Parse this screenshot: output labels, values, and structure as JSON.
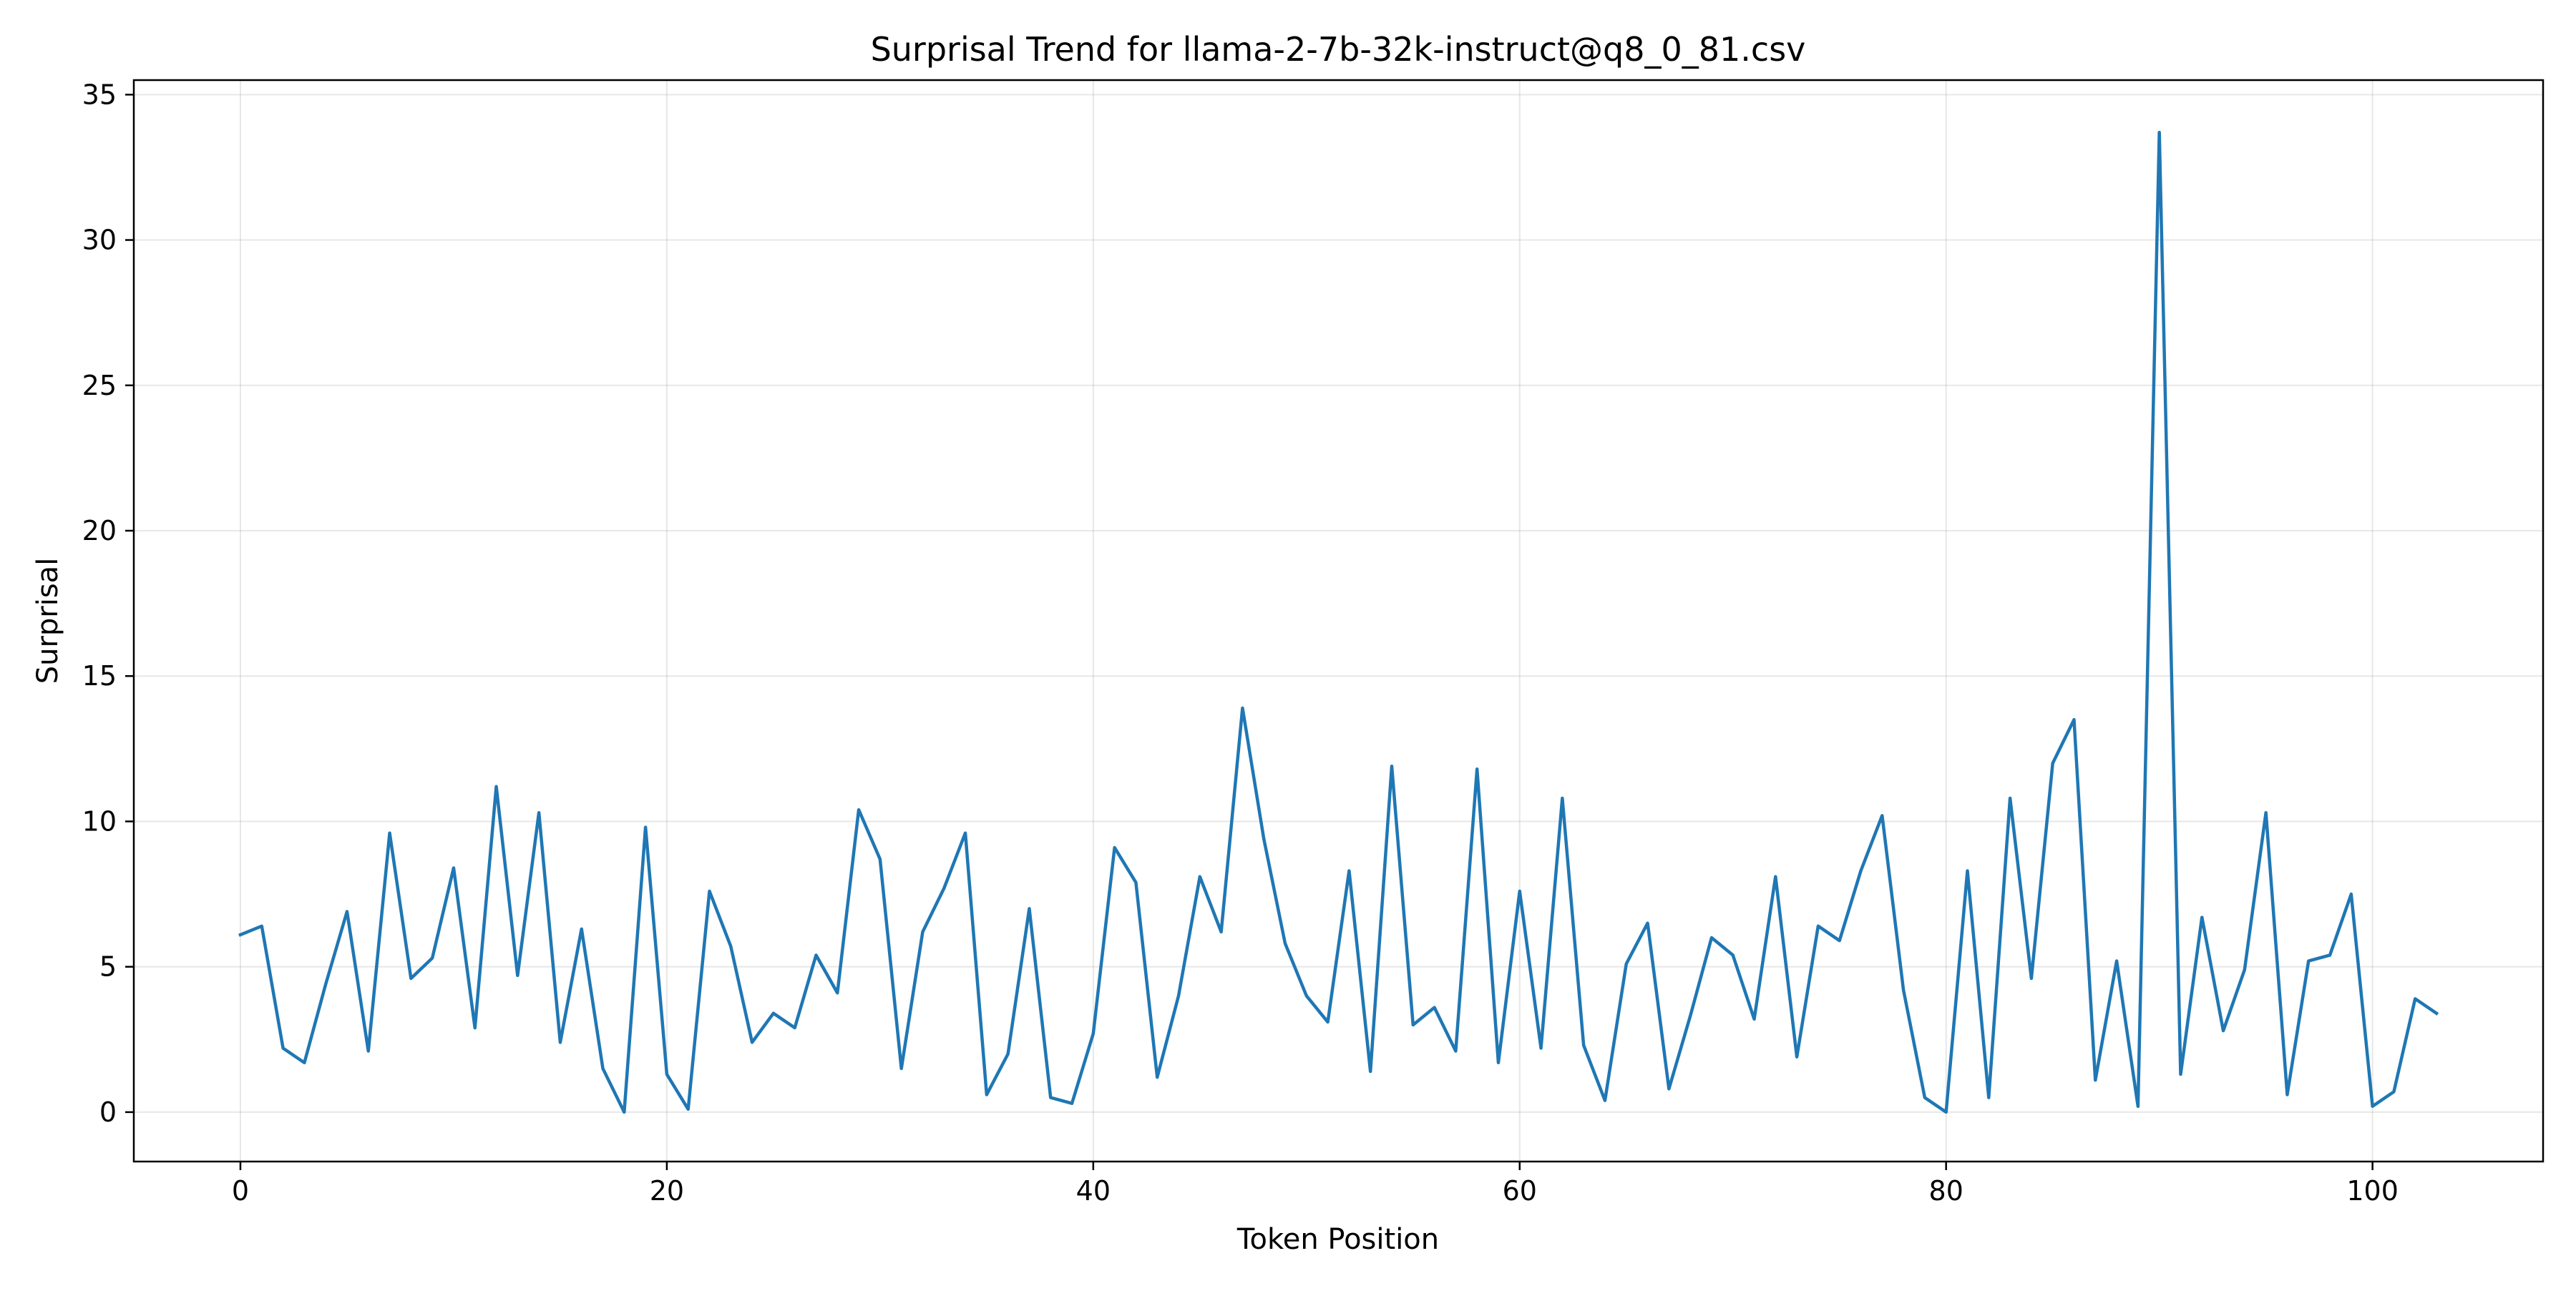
{
  "chart_data": {
    "type": "line",
    "title": "Surprisal Trend for llama-2-7b-32k-instruct@q8_0_81.csv",
    "xlabel": "Token Position",
    "ylabel": "Surprisal",
    "xlim": [
      -5,
      108
    ],
    "ylim": [
      -1.7,
      35.5
    ],
    "xticks": [
      0,
      20,
      40,
      60,
      80,
      100
    ],
    "yticks": [
      0,
      5,
      10,
      15,
      20,
      25,
      30,
      35
    ],
    "grid": true,
    "line_color": "#1f77b4",
    "series": [
      {
        "x": [
          0,
          1,
          2,
          3,
          4,
          5,
          6,
          7,
          8,
          9,
          10,
          11,
          12,
          13,
          14,
          15,
          16,
          17,
          18,
          19,
          20,
          21,
          22,
          23,
          24,
          25,
          26,
          27,
          28,
          29,
          30,
          31,
          32,
          33,
          34,
          35,
          36,
          37,
          38,
          39,
          40,
          41,
          42,
          43,
          44,
          45,
          46,
          47,
          48,
          49,
          50,
          51,
          52,
          53,
          54,
          55,
          56,
          57,
          58,
          59,
          60,
          61,
          62,
          63,
          64,
          65,
          66,
          67,
          68,
          69,
          70,
          71,
          72,
          73,
          74,
          75,
          76,
          77,
          78,
          79,
          80,
          81,
          82,
          83,
          84,
          85,
          86,
          87,
          88,
          89,
          90,
          91,
          92,
          93,
          94,
          95,
          96,
          97,
          98,
          99,
          100,
          101,
          102,
          103
        ],
        "values": [
          6.1,
          6.4,
          2.2,
          1.7,
          4.4,
          6.9,
          2.1,
          9.6,
          4.6,
          5.3,
          8.4,
          2.9,
          11.2,
          4.7,
          10.3,
          2.4,
          6.3,
          1.5,
          0.0,
          9.8,
          1.3,
          0.1,
          7.6,
          5.7,
          2.4,
          3.4,
          2.9,
          5.4,
          4.1,
          10.4,
          8.7,
          1.5,
          6.2,
          7.7,
          9.6,
          0.6,
          2.0,
          7.0,
          0.5,
          0.3,
          2.7,
          9.1,
          7.9,
          1.2,
          4.0,
          8.1,
          6.2,
          13.9,
          9.4,
          5.8,
          4.0,
          3.1,
          8.3,
          1.4,
          11.9,
          3.0,
          3.6,
          2.1,
          11.8,
          1.7,
          7.6,
          2.2,
          10.8,
          2.3,
          0.4,
          5.1,
          6.5,
          0.8,
          3.3,
          6.0,
          5.4,
          3.2,
          8.1,
          1.9,
          6.4,
          5.9,
          8.3,
          10.2,
          4.2,
          0.5,
          0.0,
          8.3,
          0.5,
          10.8,
          4.6,
          12.0,
          13.5,
          1.1,
          5.2,
          0.2,
          33.7,
          1.3,
          6.7,
          2.8,
          4.9,
          10.3,
          0.6,
          5.2,
          5.4,
          7.5,
          0.2,
          0.7,
          3.9,
          3.4
        ]
      }
    ]
  }
}
